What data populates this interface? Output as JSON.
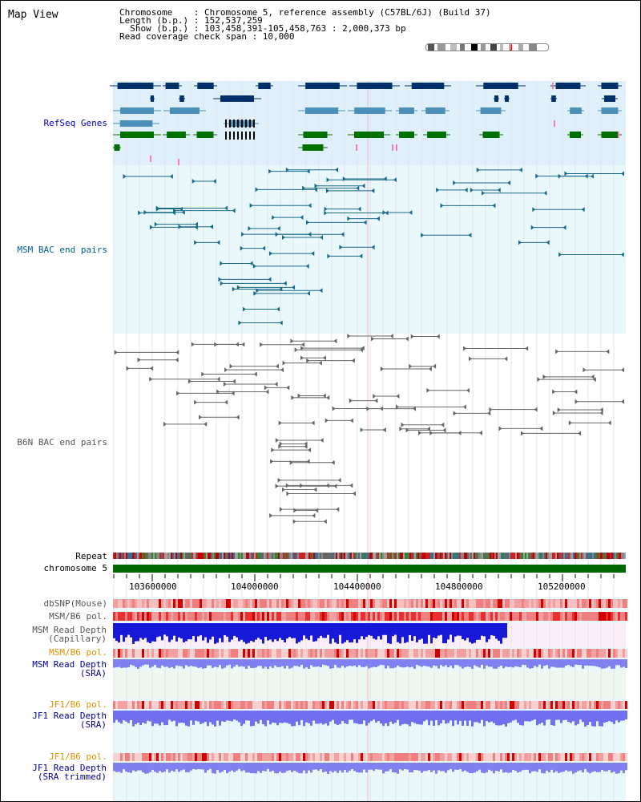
{
  "title": "Map View",
  "header": {
    "line1": "Chromosome    : Chromosome 5, reference assembly (C57BL/6J) (Build 37)",
    "line2": "Length (b.p.) : 152,537,259",
    "line3": "  Show (b.p.) : 103,458,391-105,458,763 : 2,000,373 bp",
    "line4": "Read coverage check span : 10,000"
  },
  "tracks": {
    "refseq": "RefSeq Genes",
    "msm_bac": "MSM BAC end pairs",
    "b6n_bac": "B6N BAC end pairs",
    "repeat": "Repeat",
    "chromosome": "chromosome 5",
    "dbsnp": "dbSNP(Mouse)",
    "msm_b6_pol1": "MSM/B6 pol.",
    "msm_depth_cap": "MSM Read Depth\n(Capillary)",
    "msm_b6_pol2": "MSM/B6 pol.",
    "msm_depth_sra": "MSM Read Depth\n(SRA)",
    "jf1_b6_pol1": "JF1/B6 pol.",
    "jf1_depth_sra": "JF1 Read Depth\n(SRA)",
    "jf1_b6_pol2": "JF1/B6 pol.",
    "jf1_depth_trim": "JF1 Read Depth\n(SRA trimmed)"
  },
  "axis": {
    "ticks": [
      "103600000",
      "104000000",
      "104400000",
      "104800000",
      "105200000"
    ]
  },
  "colors": {
    "refseq_label": "#0000cc",
    "msm_bac_label": "#006090",
    "b6n_label": "#555555",
    "pol_label": "#e09000",
    "depth_label": "#000099",
    "depth_cap_label": "#555555",
    "chrom_bar": "#006600"
  }
}
